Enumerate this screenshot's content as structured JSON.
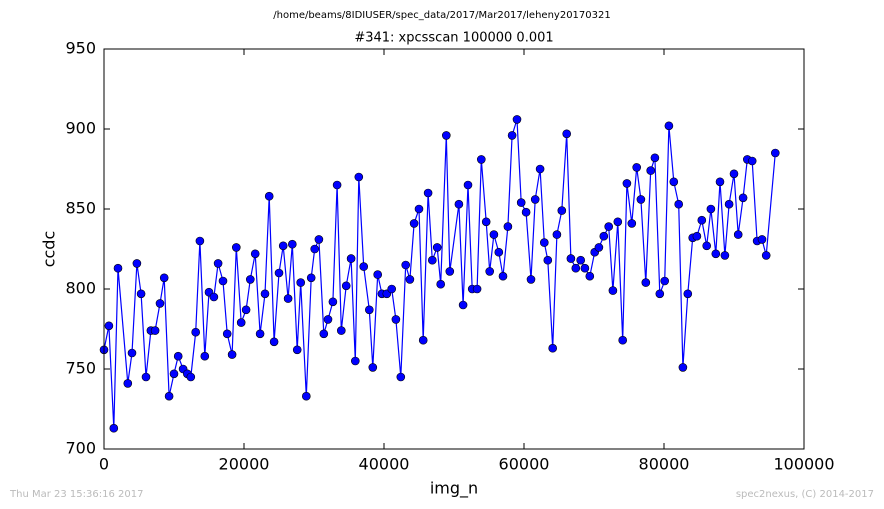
{
  "chart_data": {
    "type": "line",
    "suptitle": "/home/beams/8IDIUSER/spec_data/2017/Mar2017/leheny20170321",
    "title": "#341: xpcsscan 100000 0.001",
    "xlabel": "img_n",
    "ylabel": "ccdc",
    "annotations": [
      "Thu Mar 23 15:36:16 2017",
      "spec2nexus, (C) 2014-2017"
    ],
    "xlim": [
      0,
      100000
    ],
    "xticks": [
      0,
      20000,
      40000,
      60000,
      80000,
      100000
    ],
    "ylim": [
      700,
      950
    ],
    "yticks": [
      700,
      750,
      800,
      850,
      900,
      950
    ],
    "grid": false,
    "x": [
      0,
      700,
      1400,
      2000,
      3400,
      4000,
      4700,
      5300,
      6000,
      6700,
      7300,
      8000,
      8600,
      9300,
      10000,
      10600,
      11300,
      11900,
      12400,
      13100,
      13700,
      14400,
      15000,
      15700,
      16300,
      17000,
      17600,
      18300,
      18900,
      19600,
      20300,
      20900,
      21600,
      22300,
      23000,
      23600,
      24300,
      25000,
      25600,
      26300,
      26900,
      27600,
      28100,
      28900,
      29600,
      30100,
      30700,
      31400,
      32000,
      32700,
      33300,
      33900,
      34600,
      35300,
      35900,
      36400,
      37100,
      37900,
      38400,
      39100,
      39700,
      40400,
      41100,
      41700,
      42400,
      43100,
      43700,
      44300,
      45000,
      45600,
      46300,
      46900,
      47600,
      48100,
      48900,
      49400,
      50700,
      51300,
      52000,
      52600,
      53300,
      53900,
      54600,
      55100,
      55700,
      56400,
      57000,
      57700,
      58300,
      59000,
      59600,
      60300,
      61000,
      61600,
      62300,
      62900,
      63400,
      64100,
      64700,
      65400,
      66100,
      66700,
      67400,
      68100,
      68700,
      69400,
      70100,
      70700,
      71400,
      72100,
      72700,
      73400,
      74100,
      74700,
      75400,
      76100,
      76700,
      77400,
      78100,
      78700,
      79400,
      80100,
      80700,
      81400,
      82100,
      82700,
      83400,
      84100,
      84700,
      85400,
      86100,
      86700,
      87400,
      88000,
      88700,
      89300,
      90000,
      90600,
      91300,
      91900,
      92600,
      93300,
      94000,
      94600,
      95900
    ],
    "series": [
      {
        "name": "ccdc",
        "color": "#0000ff",
        "values": [
          762,
          777,
          713,
          813,
          741,
          760,
          816,
          797,
          745,
          774,
          774,
          791,
          807,
          733,
          747,
          758,
          750,
          747,
          745,
          773,
          830,
          758,
          798,
          795,
          816,
          805,
          772,
          759,
          826,
          779,
          787,
          806,
          822,
          772,
          797,
          858,
          767,
          810,
          827,
          794,
          828,
          762,
          804,
          733,
          807,
          825,
          831,
          772,
          781,
          792,
          865,
          774,
          802,
          819,
          755,
          870,
          814,
          787,
          751,
          809,
          797,
          797,
          800,
          781,
          745,
          815,
          806,
          841,
          850,
          768,
          860,
          818,
          826,
          803,
          896,
          811,
          853,
          790,
          865,
          800,
          800,
          881,
          842,
          811,
          834,
          823,
          808,
          839,
          896,
          906,
          854,
          848,
          806,
          856,
          875,
          829,
          818,
          763,
          834,
          849,
          897,
          819,
          813,
          818,
          813,
          808,
          823,
          826,
          833,
          839,
          799,
          842,
          768,
          866,
          841,
          876,
          856,
          804,
          874,
          882,
          797,
          805,
          902,
          867,
          853,
          751,
          797,
          832,
          833,
          843,
          827,
          850,
          822,
          867,
          821,
          853,
          872,
          834,
          857,
          881,
          880,
          830,
          831,
          821,
          885
        ]
      }
    ]
  }
}
